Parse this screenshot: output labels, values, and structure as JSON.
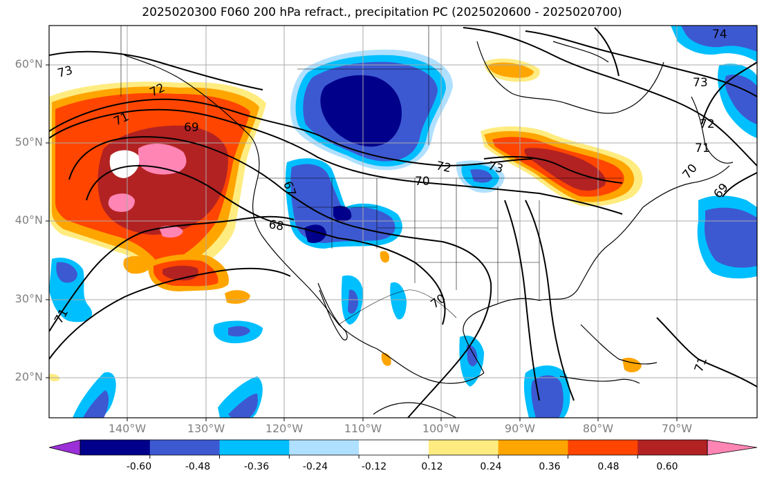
{
  "title": "2025020300 F060 200 hPa refract., precipitation PC (2025020600 - 2025020700)",
  "lat_labels": [
    "60°N",
    "50°N",
    "40°N",
    "30°N",
    "20°N"
  ],
  "lon_labels": [
    "140°W",
    "130°W",
    "120°W",
    "110°W",
    "100°W",
    "90°W",
    "80°W",
    "70°W"
  ],
  "colorbar": {
    "tick_labels": [
      "-0.60",
      "-0.48",
      "-0.36",
      "-0.24",
      "-0.12",
      "0.12",
      "0.24",
      "0.36",
      "0.48",
      "0.60"
    ],
    "colors": [
      "#9b30d8",
      "#00008b",
      "#3d59d1",
      "#00bfff",
      "#b0e0ff",
      "#ffffff",
      "#ffec80",
      "#ffa500",
      "#ff4500",
      "#b22222",
      "#ff85b4"
    ]
  },
  "contour_labels": [
    "73",
    "72",
    "71",
    "69",
    "70",
    "72",
    "73",
    "74",
    "73",
    "72",
    "71",
    "70",
    "69",
    "67",
    "68",
    "70",
    "71",
    "71"
  ],
  "legend_colors": {
    "contour": "#000000",
    "grid": "#aaaaaa",
    "coast": "#000000"
  }
}
